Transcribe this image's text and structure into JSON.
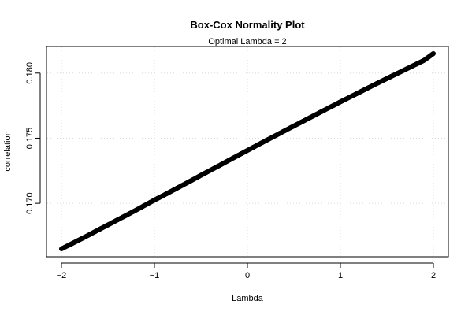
{
  "chart_data": {
    "type": "scatter",
    "title": "Box-Cox Normality Plot",
    "subtitle": "Optimal Lambda = 2",
    "xlabel": "Lambda",
    "ylabel": "correlation",
    "xlim": [
      -2,
      2
    ],
    "ylim": [
      0.1665,
      0.1815
    ],
    "xticks": [
      -2,
      -1,
      0,
      1,
      2
    ],
    "xtick_labels": [
      "−2",
      "−1",
      "0",
      "1",
      "2"
    ],
    "yticks": [
      0.17,
      0.175,
      0.18
    ],
    "ytick_labels": [
      "0.170",
      "0.175",
      "0.180"
    ],
    "grid": true,
    "marker": "open-circle",
    "series": [
      {
        "x": [
          -2.0,
          -1.9,
          -1.8,
          -1.7,
          -1.6,
          -1.5,
          -1.4,
          -1.3,
          -1.2,
          -1.1,
          -1.0,
          -0.9,
          -0.8,
          -0.7,
          -0.6,
          -0.5,
          -0.4,
          -0.3,
          -0.2,
          -0.1,
          0.0,
          0.1,
          0.2,
          0.3,
          0.4,
          0.5,
          0.6,
          0.7,
          0.8,
          0.9,
          1.0,
          1.1,
          1.2,
          1.3,
          1.4,
          1.5,
          1.6,
          1.7,
          1.8,
          1.9,
          2.0
        ],
        "y": [
          0.1665,
          0.16686,
          0.16722,
          0.16759,
          0.16797,
          0.16834,
          0.16872,
          0.16909,
          0.16947,
          0.16986,
          0.17025,
          0.17062,
          0.171,
          0.17138,
          0.17176,
          0.17215,
          0.17253,
          0.17291,
          0.1733,
          0.17368,
          0.17406,
          0.17444,
          0.17482,
          0.17519,
          0.17557,
          0.17594,
          0.17631,
          0.17668,
          0.17705,
          0.17742,
          0.17779,
          0.17815,
          0.17851,
          0.17887,
          0.17923,
          0.17958,
          0.17993,
          0.18028,
          0.18063,
          0.18098,
          0.1815
        ]
      }
    ]
  }
}
